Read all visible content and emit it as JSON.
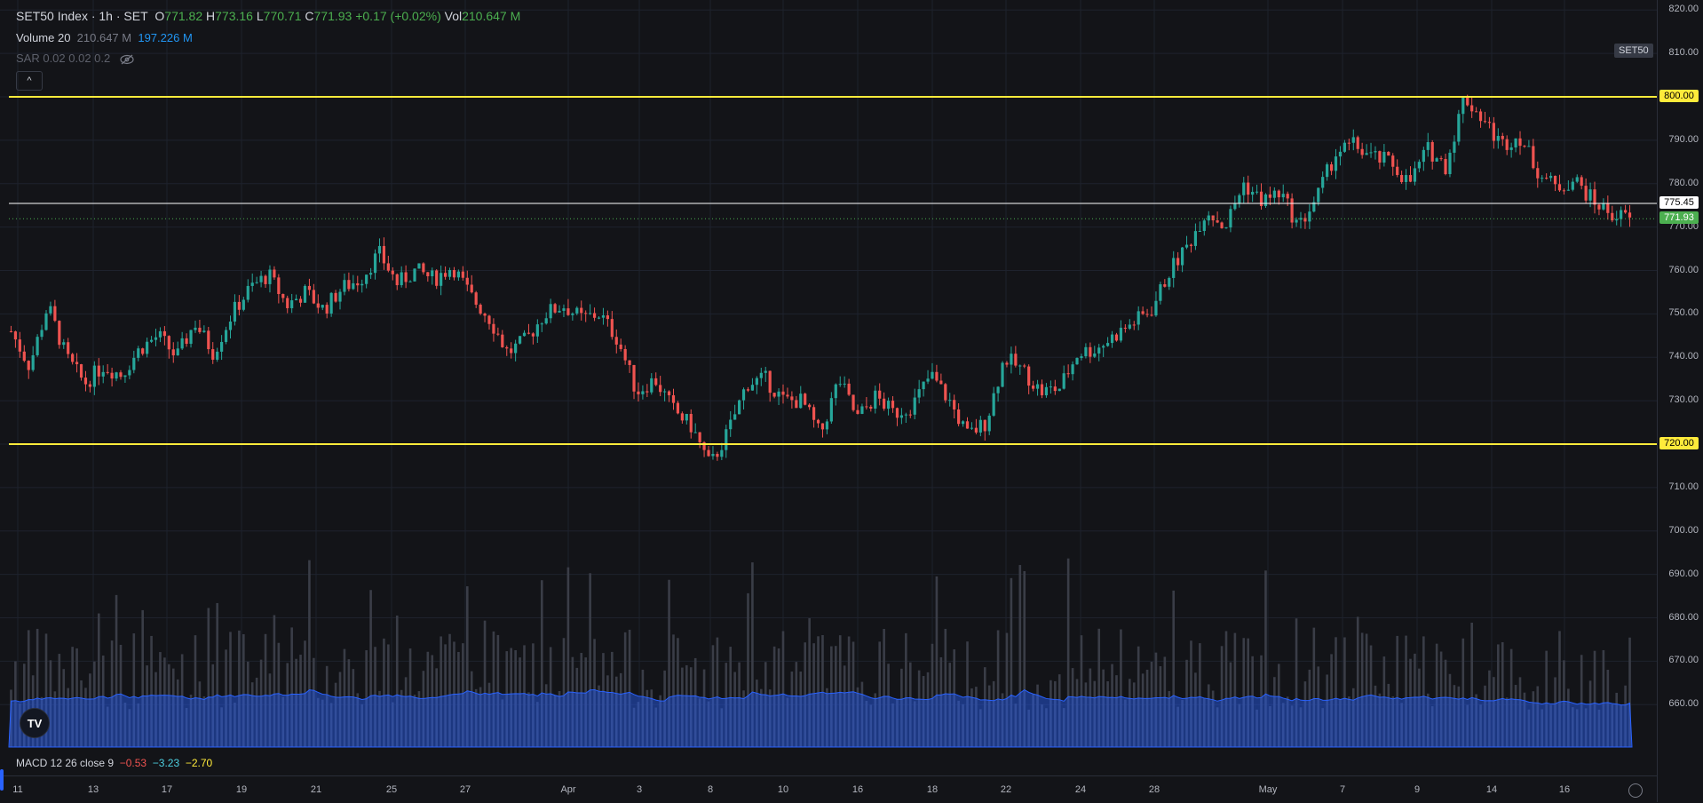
{
  "legend": {
    "symbol": "SET50 Index · 1h · SET",
    "o_label": "O",
    "o": "771.82",
    "h_label": "H",
    "h": "773.16",
    "l_label": "L",
    "l": "770.71",
    "c_label": "C",
    "c": "771.93",
    "change": "+0.17 (+0.02%)",
    "vol_label": "Vol",
    "vol": "210.647 M",
    "volume_name": "Volume 20",
    "volume_value": "210.647 M",
    "volume_ma": "197.226 M",
    "sar": "SAR 0.02 0.02 0.2",
    "collapse": "^"
  },
  "symbol_tag": "SET50",
  "macd": {
    "label": "MACD 12 26 close 9",
    "v1": "−0.53",
    "v2": "−3.23",
    "v3": "−2.70"
  },
  "logo": "TV",
  "price_axis": {
    "ticks": [
      "820.00",
      "810.00",
      "800.00",
      "790.00",
      "780.00",
      "770.00",
      "760.00",
      "750.00",
      "740.00",
      "730.00",
      "720.00",
      "710.00",
      "700.00",
      "690.00",
      "680.00",
      "670.00",
      "660.00"
    ],
    "tags": [
      {
        "label": "800.00",
        "value": 800,
        "bg": "#ffeb3b",
        "fg": "#000000"
      },
      {
        "label": "775.45",
        "value": 775.45,
        "bg": "#ffffff",
        "fg": "#000000"
      },
      {
        "label": "771.93",
        "value": 771.93,
        "bg": "#4caf50",
        "fg": "#ffffff"
      },
      {
        "label": "720.00",
        "value": 720,
        "bg": "#ffeb3b",
        "fg": "#000000"
      }
    ]
  },
  "time_axis": [
    "11",
    "13",
    "17",
    "19",
    "21",
    "25",
    "27",
    "Apr",
    "3",
    "8",
    "10",
    "16",
    "18",
    "22",
    "24",
    "28",
    "May",
    "7",
    "9",
    "14",
    "16"
  ],
  "colors": {
    "up": "#26a69a",
    "down": "#ef5350",
    "hline": "#ffeb3b",
    "volume": "#2962ff"
  },
  "chart_data": {
    "type": "candlestick",
    "horizontal_lines": [
      800,
      775.45,
      720
    ],
    "last_price": 771.93,
    "ylim": [
      655,
      822
    ],
    "close_path": [
      746,
      738,
      752,
      740,
      734,
      738,
      736,
      742,
      745,
      740,
      748,
      741,
      750,
      756,
      759,
      752,
      755,
      751,
      756,
      758,
      764,
      757,
      760,
      758,
      761,
      754,
      749,
      741,
      744,
      750,
      752,
      749,
      750,
      744,
      732,
      735,
      728,
      724,
      715,
      723,
      734,
      735,
      730,
      730,
      722,
      735,
      726,
      731,
      727,
      729,
      736,
      730,
      722,
      725,
      740,
      737,
      732,
      733,
      741,
      742,
      745,
      748,
      751,
      760,
      766,
      774,
      770,
      780,
      776,
      778,
      770,
      777,
      787,
      789,
      786,
      785,
      780,
      788,
      784,
      800,
      795,
      789,
      791,
      783,
      779,
      781,
      776,
      773,
      772
    ]
  }
}
